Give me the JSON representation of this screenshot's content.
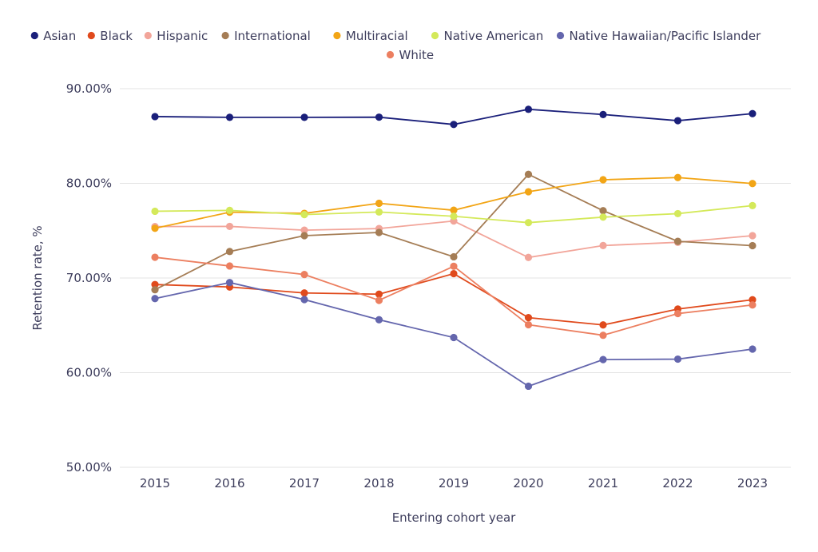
{
  "chart_data": {
    "type": "line",
    "title": "",
    "xlabel": "Entering cohort year",
    "ylabel": "Retention rate, %",
    "ylim": [
      50,
      90
    ],
    "yticks": [
      50,
      60,
      70,
      80,
      90
    ],
    "ytick_labels": [
      "50.00%",
      "60.00%",
      "70.00%",
      "80.00%",
      "90.00%"
    ],
    "grid": true,
    "legend_position": "top-center",
    "x": [
      "2015",
      "2016",
      "2017",
      "2018",
      "2019",
      "2020",
      "2021",
      "2022",
      "2023"
    ],
    "series": [
      {
        "name": "Asian",
        "color": "#1a1f7a",
        "values": [
          87.05,
          86.97,
          86.97,
          86.99,
          86.22,
          87.82,
          87.27,
          86.62,
          87.36
        ]
      },
      {
        "name": "Black",
        "color": "#e04a1c",
        "values": [
          69.31,
          69.05,
          68.42,
          68.29,
          70.46,
          65.81,
          65.04,
          66.72,
          67.7
        ]
      },
      {
        "name": "Hispanic",
        "color": "#f2a59a",
        "values": [
          75.43,
          75.45,
          75.05,
          75.22,
          76.02,
          72.17,
          73.43,
          73.77,
          74.47
        ]
      },
      {
        "name": "International",
        "color": "#a57d55",
        "values": [
          68.76,
          72.8,
          74.47,
          74.81,
          72.24,
          80.95,
          77.11,
          73.87,
          73.42
        ]
      },
      {
        "name": "Multiracial",
        "color": "#f2a516",
        "values": [
          75.25,
          76.95,
          76.83,
          77.89,
          77.16,
          79.11,
          80.38,
          80.61,
          79.98
        ]
      },
      {
        "name": "Native American",
        "color": "#d4e95a",
        "values": [
          77.05,
          77.14,
          76.7,
          76.97,
          76.52,
          75.85,
          76.43,
          76.8,
          77.65
        ]
      },
      {
        "name": "Native Hawaiian/Pacific Islander",
        "color": "#6466ad",
        "values": [
          67.83,
          69.52,
          67.72,
          65.59,
          63.71,
          58.57,
          61.38,
          61.43,
          62.49
        ]
      },
      {
        "name": "White",
        "color": "#ec7f60",
        "values": [
          72.19,
          71.27,
          70.37,
          67.64,
          71.24,
          65.06,
          63.95,
          66.24,
          67.15
        ]
      }
    ]
  }
}
